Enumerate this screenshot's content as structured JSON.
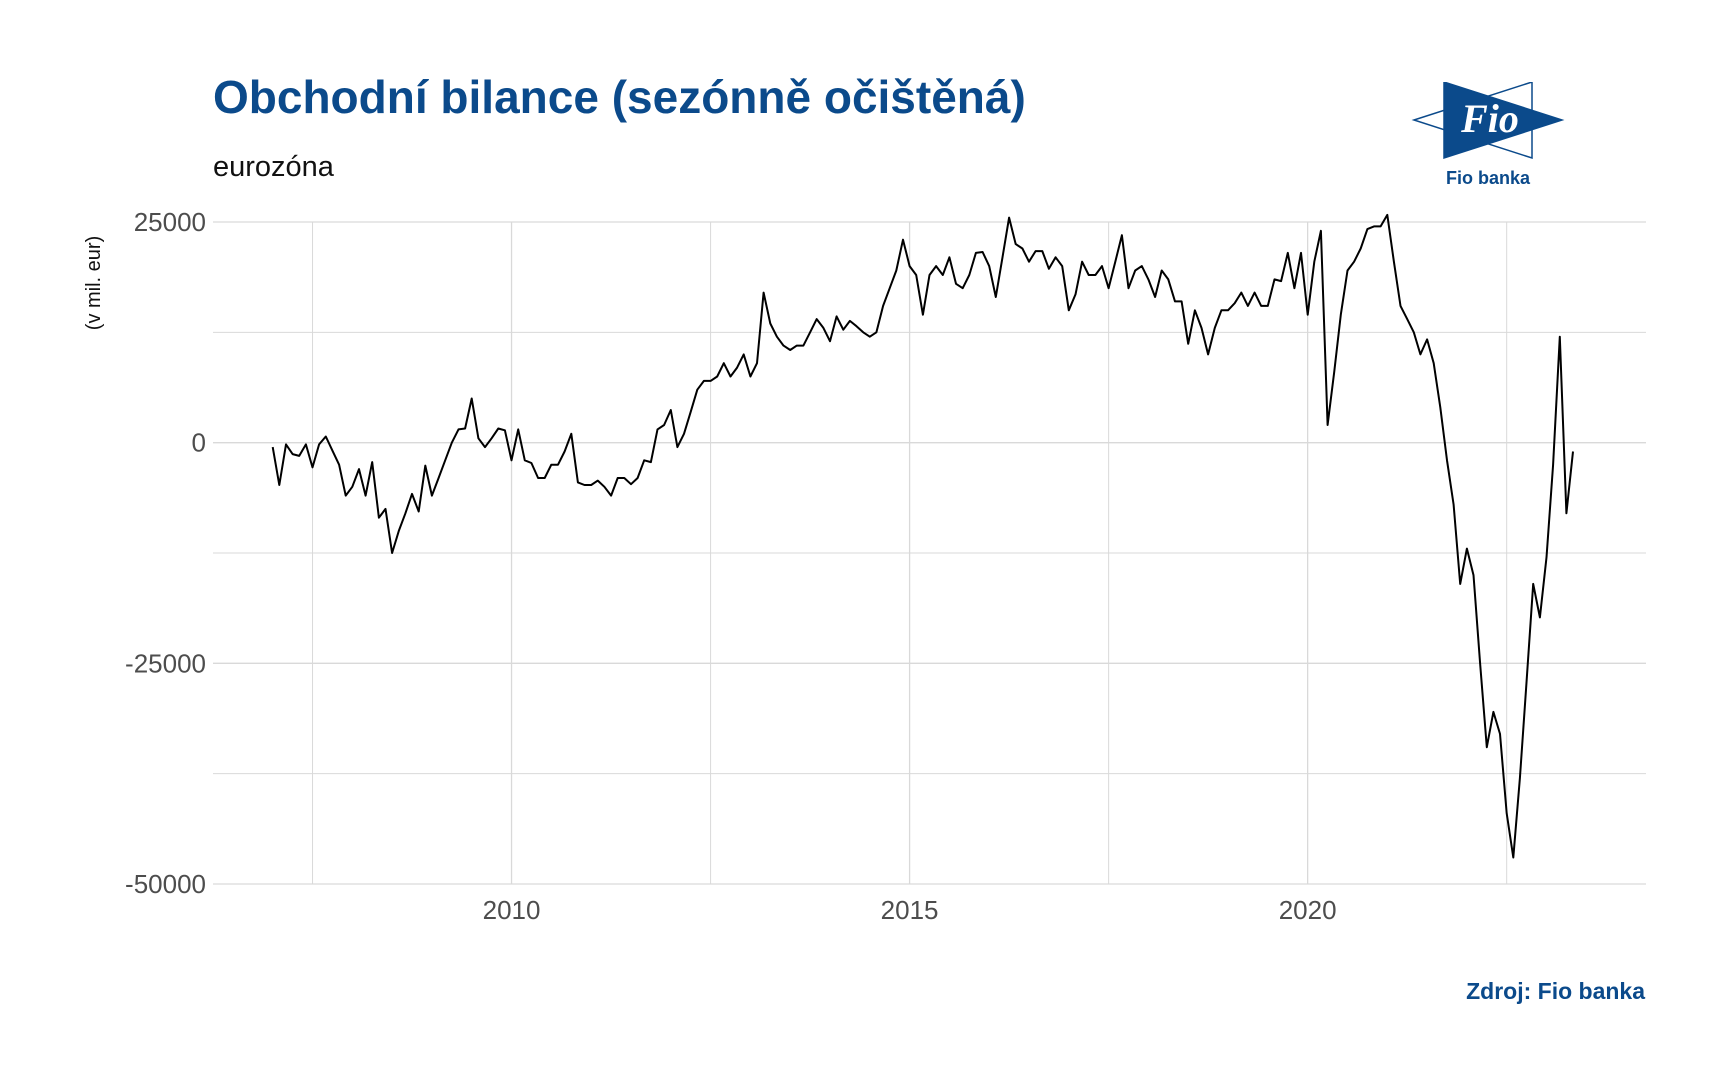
{
  "title": "Obchodní bilance (sezónně očištěná)",
  "subtitle": "eurozóna",
  "source": "Zdroj: Fio banka",
  "logo": {
    "brand": "Fio",
    "caption": "Fio banka"
  },
  "colors": {
    "title": "#0b4a8b",
    "line": "#000000",
    "grid": "#d9d9d9",
    "logo": "#0b4a8b"
  },
  "chart_data": {
    "type": "line",
    "title": "Obchodní bilance (sezónně očištěná)",
    "subtitle": "eurozóna",
    "xlabel": "",
    "ylabel": "(v mil. eur)",
    "xlim": [
      2006.25,
      2024.25
    ],
    "ylim": [
      -50000,
      25000
    ],
    "x_ticks": [
      2010,
      2015,
      2020
    ],
    "x_tick_labels": [
      "2010",
      "2015",
      "2020"
    ],
    "y_ticks": [
      -50000,
      -25000,
      0,
      25000
    ],
    "y_tick_labels": [
      "-50000",
      "-25000",
      "0",
      "25000"
    ],
    "grid": true,
    "legend": "none",
    "x_start": "2007-01",
    "frequency": "monthly",
    "series": [
      {
        "values": [
          -500,
          -4800,
          -200,
          -1300,
          -1500,
          -200,
          -2800,
          -200,
          700,
          -900,
          -2500,
          -6000,
          -5000,
          -3000,
          -6000,
          -2200,
          -8500,
          -7500,
          -12500,
          -10000,
          -8000,
          -5800,
          -7800,
          -2600,
          -6000,
          -4000,
          -2000,
          0,
          1500,
          1600,
          5000,
          500,
          -500,
          500,
          1600,
          1400,
          -2000,
          1500,
          -2000,
          -2300,
          -4000,
          -4000,
          -2500,
          -2500,
          -1000,
          1000,
          -4500,
          -4800,
          -4800,
          -4300,
          -5000,
          -6000,
          -4000,
          -4000,
          -4700,
          -4000,
          -2000,
          -2200,
          1500,
          2000,
          3700,
          -500,
          1000,
          3500,
          6000,
          7000,
          7000,
          7500,
          9000,
          7500,
          8500,
          10000,
          7500,
          9000,
          17000,
          13500,
          12000,
          11000,
          10500,
          11000,
          11000,
          12500,
          14000,
          13000,
          11500,
          14300,
          12800,
          13800,
          13200,
          12500,
          12000,
          12500,
          15500,
          17500,
          19500,
          23000,
          20000,
          19000,
          14500,
          19000,
          20000,
          19000,
          21000,
          18000,
          17500,
          19000,
          21500,
          21600,
          20000,
          16500,
          21000,
          25500,
          22500,
          22000,
          20500,
          21700,
          21700,
          19700,
          21000,
          20000,
          15000,
          16800,
          20500,
          19000,
          19000,
          20000,
          17500,
          20500,
          23500,
          17500,
          19500,
          20000,
          18500,
          16500,
          19500,
          18500,
          16000,
          16000,
          11200,
          15000,
          13000,
          10000,
          13000,
          15000,
          15000,
          15800,
          17000,
          15500,
          17000,
          15500,
          15500,
          18500,
          18300,
          21500,
          17500,
          21500,
          14500,
          20500,
          24000,
          2000,
          8000,
          14500,
          19500,
          20500,
          22000,
          24200,
          24500,
          24500,
          25800,
          20500,
          15500,
          14000,
          12500,
          10000,
          11700,
          9000,
          4000,
          -2000,
          -7000,
          -16000,
          -12000,
          -15000,
          -25000,
          -34500,
          -30500,
          -33000,
          -42000,
          -47000,
          -38000,
          -27000,
          -16000,
          -19800,
          -13000,
          -2500,
          12000,
          -8000,
          -1000
        ]
      }
    ]
  }
}
